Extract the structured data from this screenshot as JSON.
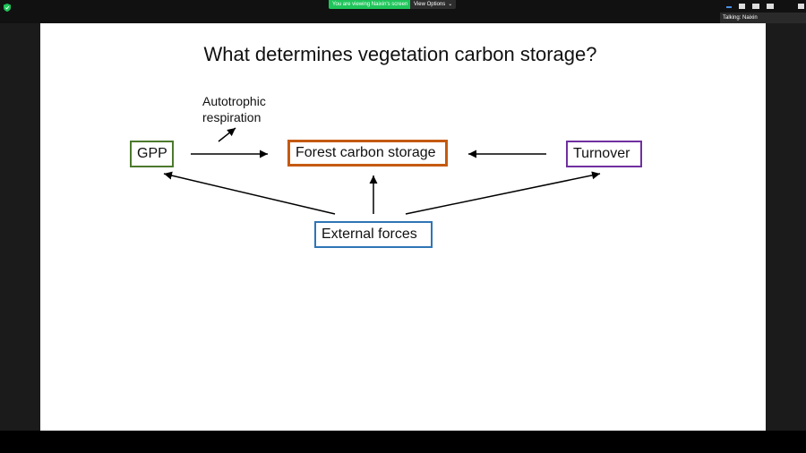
{
  "meeting": {
    "viewing_banner": "You are viewing Naixin's screen",
    "view_options_label": "View Options",
    "talking_label": "Talking: Naixin",
    "icons": [
      "shield-icon",
      "chevron-down-icon",
      "minimize-icon",
      "speaker-view-icon",
      "gallery-view-icon",
      "fullscreen-icon"
    ]
  },
  "slide": {
    "title": "What determines vegetation carbon storage?",
    "nodes": {
      "gpp": "GPP",
      "forest": "Forest carbon storage",
      "turnover": "Turnover",
      "external": "External forces"
    },
    "respiration": {
      "line1": "Autotrophic",
      "line2": "respiration"
    },
    "colors": {
      "gpp": "#4c7a2c",
      "forest": "#c55a11",
      "turnover": "#7030a0",
      "external": "#2e75b6"
    }
  }
}
